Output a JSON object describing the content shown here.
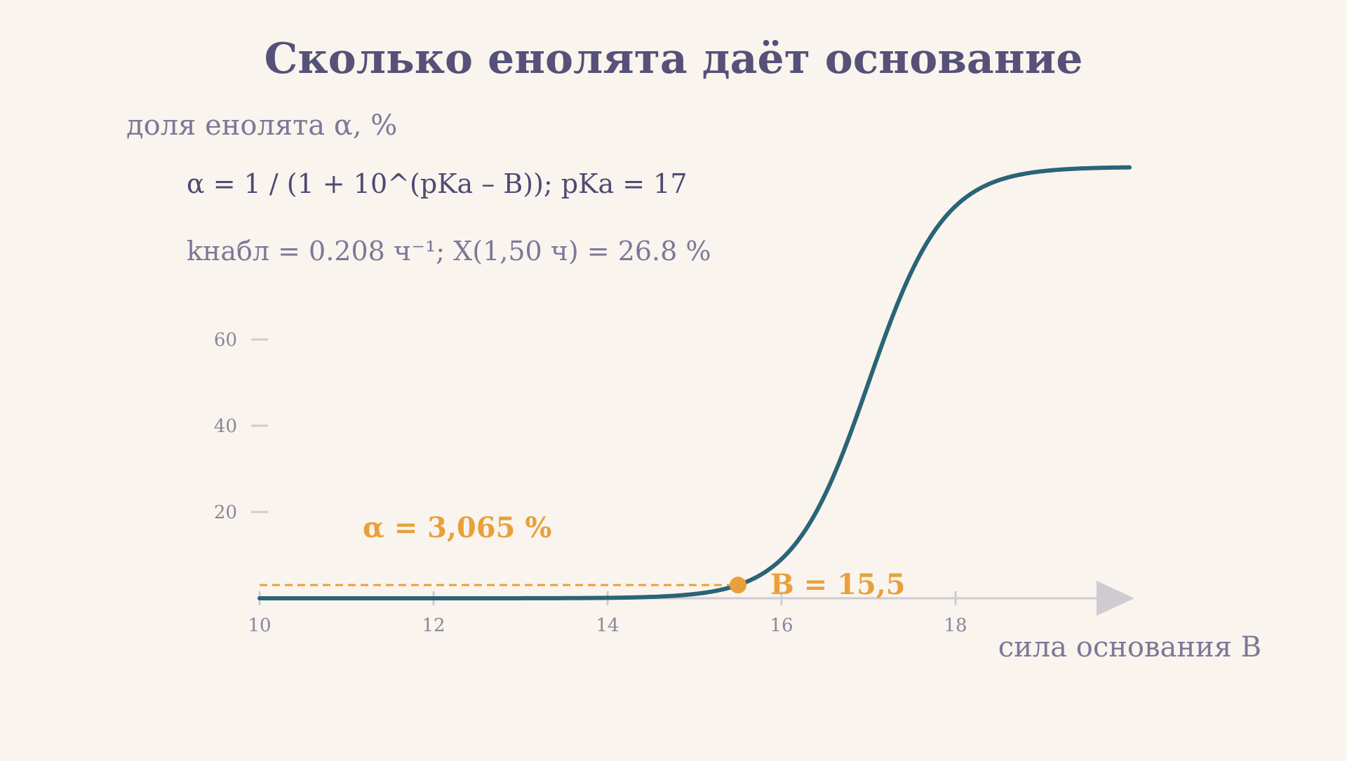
{
  "title": "Сколько енолята даёт основание",
  "formula": {
    "line1": "α = 1 / (1 + 10^(pKa – B));   pKa = 17",
    "line2": "kнабл = 0.208 ч⁻¹;   X(1,50 ч) = 26.8 %"
  },
  "colors": {
    "background": "#f9f4ee",
    "curve": "#2a6477",
    "highlight": "#e9a03b",
    "axis": "#cfcbd0",
    "title": "#565178"
  },
  "chart_data": {
    "type": "line",
    "title": "Сколько енолята даёт основание",
    "xlabel": "сила основания B",
    "ylabel": "доля енолята α, %",
    "xlim": [
      10,
      20
    ],
    "ylim": [
      0,
      100
    ],
    "x_ticks": [
      10,
      12,
      14,
      16,
      18
    ],
    "y_ticks": [
      20,
      40,
      60
    ],
    "grid": false,
    "series": [
      {
        "function": "alpha = 100 / (1 + 10^(pKa - B))",
        "pKa": 17,
        "x_range": [
          10,
          20
        ]
      }
    ],
    "highlight_point": {
      "x": 15.5,
      "y": 3.065
    },
    "annotations": {
      "point_y_label": "α = 3,065 %",
      "point_x_label": "B = 15,5"
    }
  }
}
